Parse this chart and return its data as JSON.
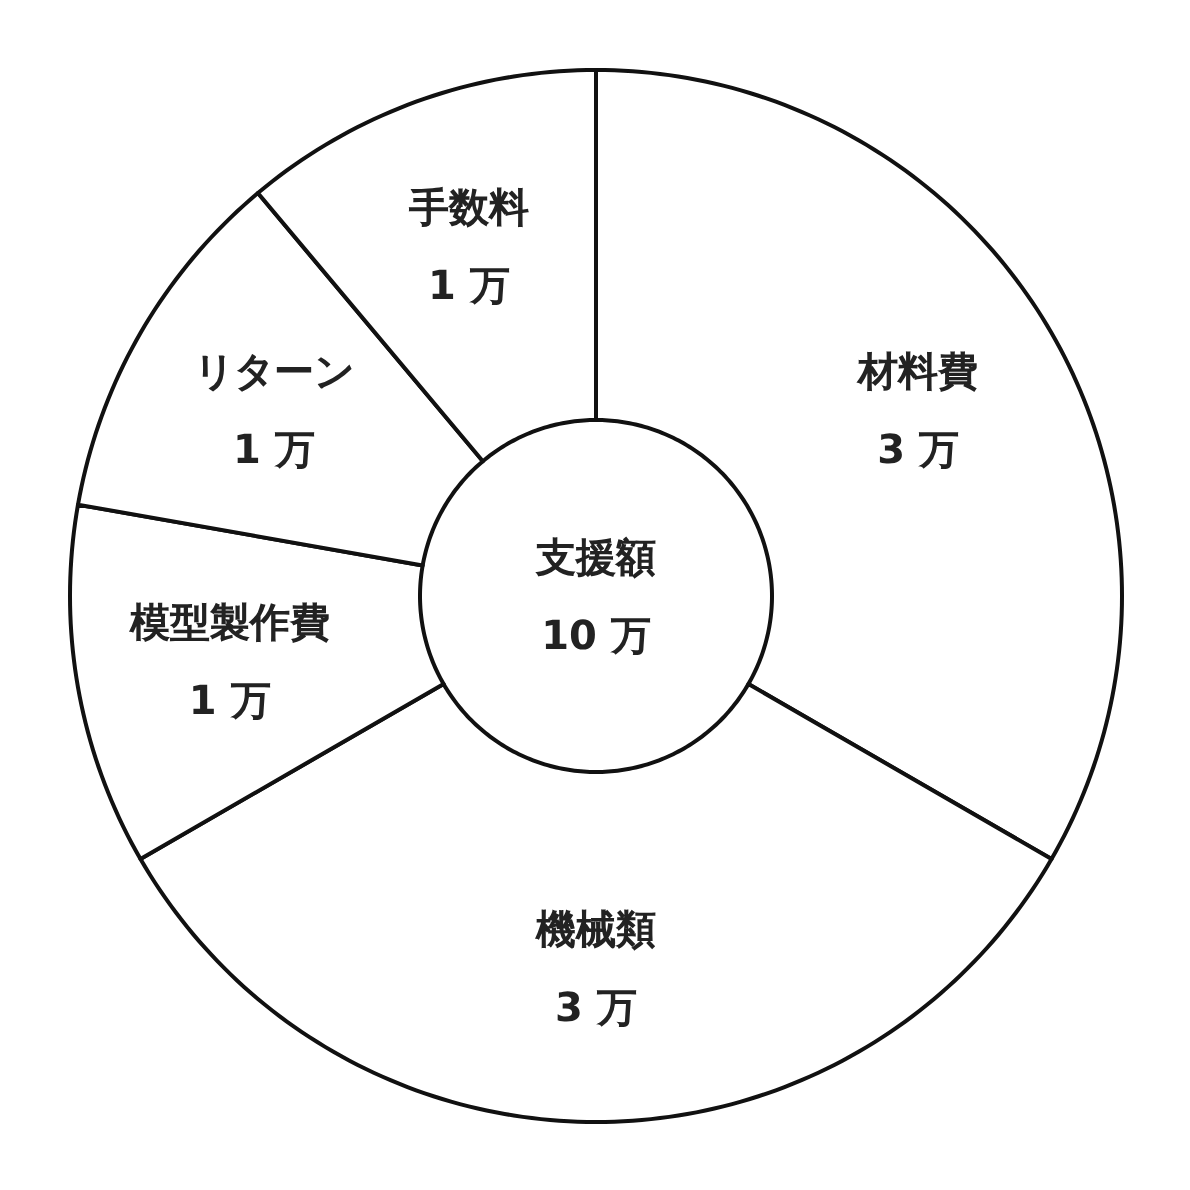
{
  "chart_data": {
    "type": "donut",
    "categories": [
      "材料費",
      "機械類",
      "模型製作費",
      "リターン",
      "手数料"
    ],
    "values": [
      3,
      3,
      1,
      1,
      1
    ],
    "value_labels": [
      "3 万",
      "3 万",
      "1 万",
      "1 万",
      "1 万"
    ],
    "colors": [
      "#ffffff",
      "#ffffff",
      "#ffffff",
      "#ffffff",
      "#ffffff"
    ],
    "annotations": [
      "支援額\n10 万"
    ]
  }
}
